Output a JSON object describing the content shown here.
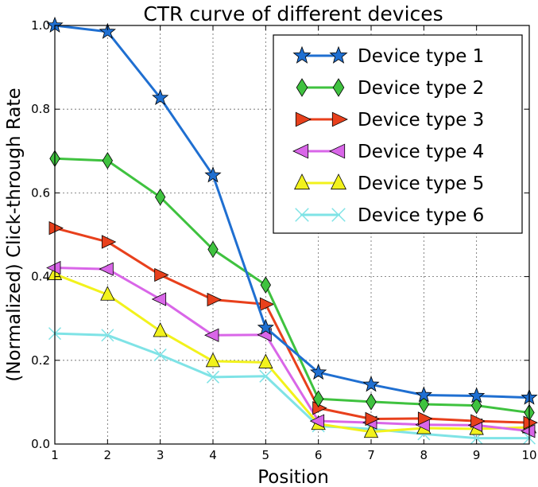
{
  "chart_data": {
    "type": "line",
    "title": "CTR curve of different devices",
    "xlabel": "Position",
    "ylabel": "(Normalized) Click-through Rate",
    "xlim": [
      1,
      10
    ],
    "ylim": [
      0.0,
      1.0
    ],
    "x": [
      1,
      2,
      3,
      4,
      5,
      6,
      7,
      8,
      9,
      10
    ],
    "xticks": [
      "1",
      "2",
      "3",
      "4",
      "5",
      "6",
      "7",
      "8",
      "9",
      "10"
    ],
    "yticks": [
      "0.0",
      "0.2",
      "0.4",
      "0.6",
      "0.8",
      "1.0"
    ],
    "grid": true,
    "legend_position": "top-right",
    "series": [
      {
        "name": "Device type 1",
        "color": "#1f6fd1",
        "marker": "star",
        "values": [
          1.0,
          0.985,
          0.827,
          0.642,
          0.278,
          0.171,
          0.142,
          0.117,
          0.115,
          0.111
        ]
      },
      {
        "name": "Device type 2",
        "color": "#3fc23f",
        "marker": "diamond",
        "values": [
          0.682,
          0.677,
          0.59,
          0.465,
          0.38,
          0.108,
          0.101,
          0.095,
          0.092,
          0.075
        ]
      },
      {
        "name": "Device type 3",
        "color": "#e8401c",
        "marker": "triangle-right",
        "values": [
          0.516,
          0.483,
          0.404,
          0.345,
          0.334,
          0.086,
          0.06,
          0.061,
          0.055,
          0.051
        ]
      },
      {
        "name": "Device type 4",
        "color": "#d966e8",
        "marker": "triangle-left",
        "values": [
          0.421,
          0.418,
          0.346,
          0.26,
          0.261,
          0.055,
          0.051,
          0.046,
          0.045,
          0.031
        ]
      },
      {
        "name": "Device type 5",
        "color": "#f2f21c",
        "marker": "triangle-up",
        "values": [
          0.406,
          0.357,
          0.27,
          0.198,
          0.195,
          0.048,
          0.029,
          0.038,
          0.036,
          0.04
        ]
      },
      {
        "name": "Device type 6",
        "color": "#7fe3e6",
        "marker": "x",
        "values": [
          0.264,
          0.26,
          0.213,
          0.16,
          0.162,
          0.043,
          0.036,
          0.024,
          0.014,
          0.014
        ]
      }
    ]
  }
}
